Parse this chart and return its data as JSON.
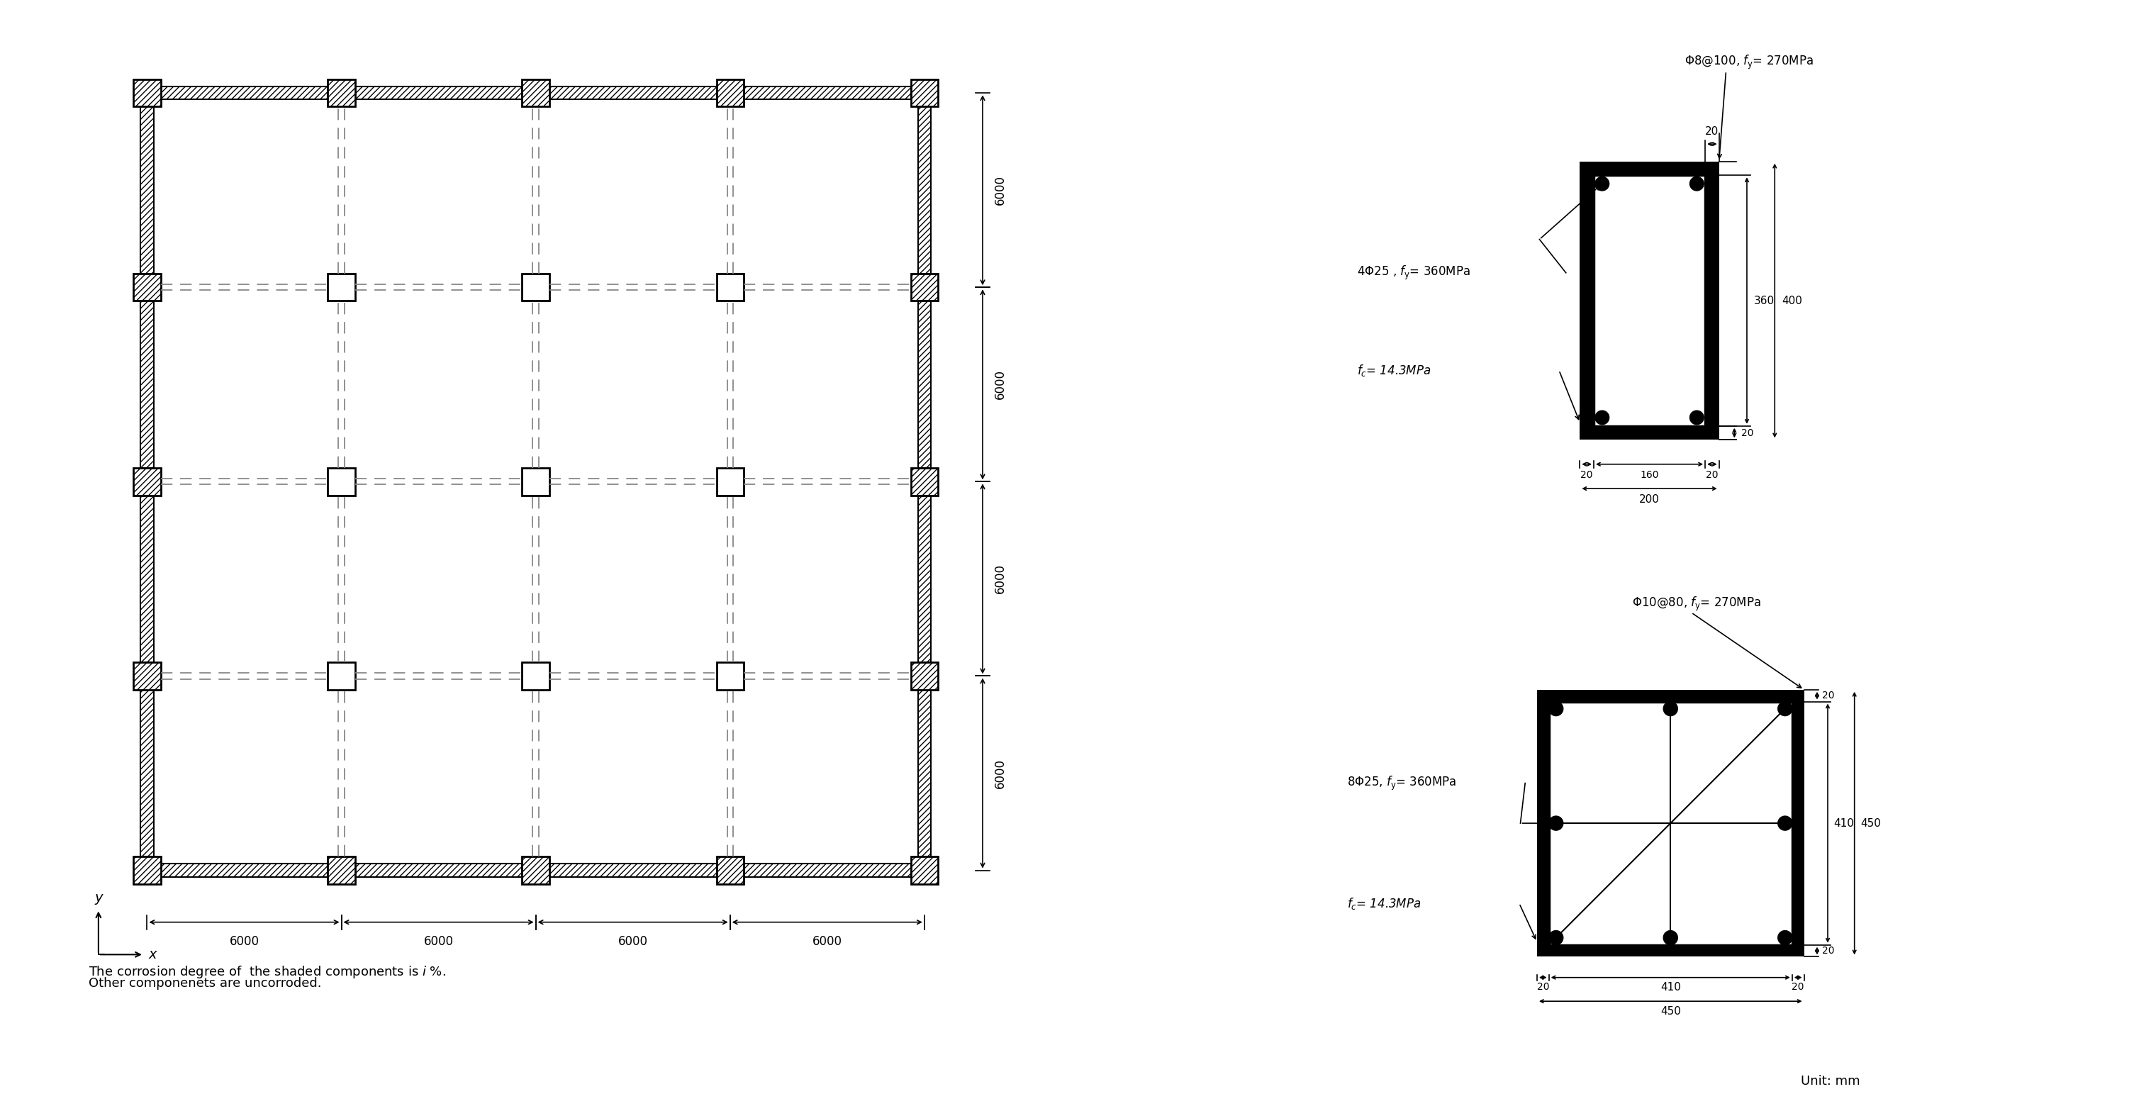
{
  "fig_width": 30.1,
  "fig_height": 15.67,
  "bg_color": "#ffffff",
  "n_spans": 4,
  "span_size": 6000,
  "col_half": 420,
  "beam_half": 200,
  "stirrup_label_beam": "Φ8@100, $f_{\\rm y}$= 270MPa",
  "steel_label_beam": "4Φ25 , $f_{\\rm y}$= 360MPa",
  "fc_label_beam": "$f_c$= 14.3MPa",
  "steel_label_col": "8Φ25, $f_{\\rm y}$= 360MPa",
  "stirrup_label_col": "Φ10@80, $f_{\\rm y}$= 270MPa",
  "fc_label_col": "$f_c$= 14.3MPa",
  "unit_label": "Unit: mm",
  "corrosion_line1": "The corrosion degree of  the shaded components is $i$ %.",
  "corrosion_line2": "Other componenets are uncorroded.",
  "black": "#000000",
  "gray_dash": "#888888"
}
